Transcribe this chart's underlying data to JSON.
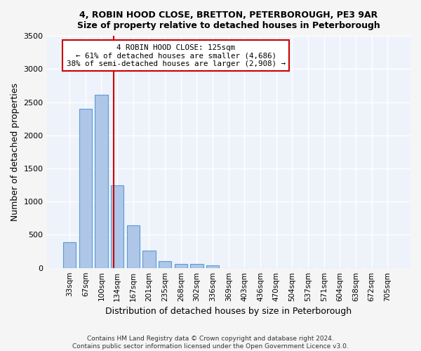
{
  "title": "4, ROBIN HOOD CLOSE, BRETTON, PETERBOROUGH, PE3 9AR",
  "subtitle": "Size of property relative to detached houses in Peterborough",
  "xlabel": "Distribution of detached houses by size in Peterborough",
  "ylabel": "Number of detached properties",
  "categories": [
    "33sqm",
    "67sqm",
    "100sqm",
    "134sqm",
    "167sqm",
    "201sqm",
    "235sqm",
    "268sqm",
    "302sqm",
    "336sqm",
    "369sqm",
    "403sqm",
    "436sqm",
    "470sqm",
    "504sqm",
    "537sqm",
    "571sqm",
    "604sqm",
    "638sqm",
    "672sqm",
    "705sqm"
  ],
  "values": [
    390,
    2400,
    2610,
    1250,
    640,
    260,
    100,
    62,
    60,
    42,
    0,
    0,
    0,
    0,
    0,
    0,
    0,
    0,
    0,
    0,
    0
  ],
  "bar_color": "#aec6e8",
  "bar_edge_color": "#5b9bd5",
  "background_color": "#eef2fb",
  "fig_background_color": "#f5f5f5",
  "grid_color": "#ffffff",
  "annotation_line1": "4 ROBIN HOOD CLOSE: 125sqm",
  "annotation_line2": "← 61% of detached houses are smaller (4,686)",
  "annotation_line3": "38% of semi-detached houses are larger (2,908) →",
  "annotation_border_color": "#cc0000",
  "vline_color": "#cc0000",
  "vline_x_index": 2.76,
  "ylim": [
    0,
    3500
  ],
  "yticks": [
    0,
    500,
    1000,
    1500,
    2000,
    2500,
    3000,
    3500
  ],
  "footer_line1": "Contains HM Land Registry data © Crown copyright and database right 2024.",
  "footer_line2": "Contains public sector information licensed under the Open Government Licence v3.0."
}
